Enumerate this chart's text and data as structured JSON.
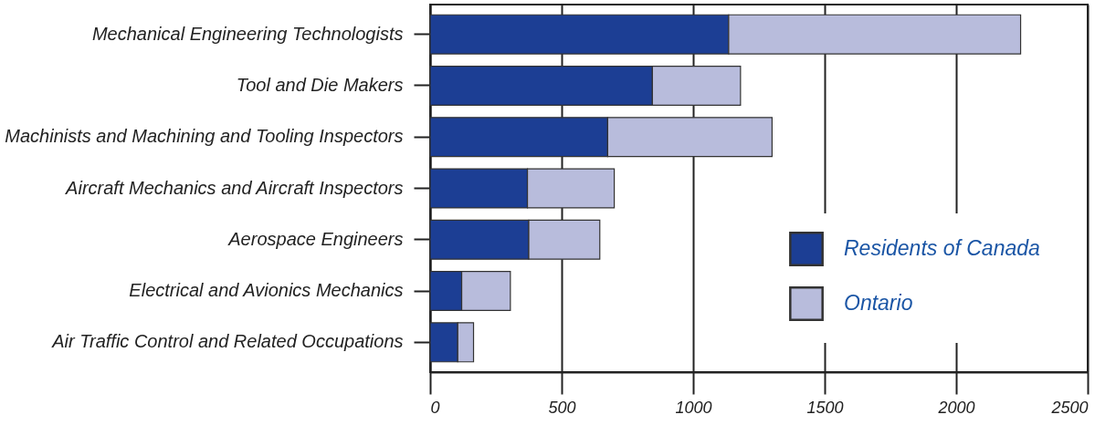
{
  "chart_data": {
    "type": "bar",
    "orientation": "horizontal",
    "stacked": true,
    "categories": [
      "Mechanical Engineering Technologists",
      "Tool and Die Makers",
      "Machinists and Machining and Tooling Inspectors",
      "Aircraft Mechanics and Aircraft Inspectors",
      "Aerospace Engineers",
      "Electrical and Avionics Mechanics",
      "Air Traffic Control and Related Occupations"
    ],
    "series": [
      {
        "name": "Residents of Canada",
        "color": "#1c3e94",
        "values": [
          1135,
          845,
          675,
          370,
          375,
          120,
          105
        ]
      },
      {
        "name": "Ontario",
        "color": "#b8bcdc",
        "values": [
          1110,
          335,
          625,
          330,
          270,
          185,
          60
        ]
      }
    ],
    "xlim": [
      0,
      2500
    ],
    "xticks": [
      0,
      500,
      1000,
      1500,
      2000,
      2500
    ],
    "grid": "x",
    "legend": "bottom right"
  }
}
